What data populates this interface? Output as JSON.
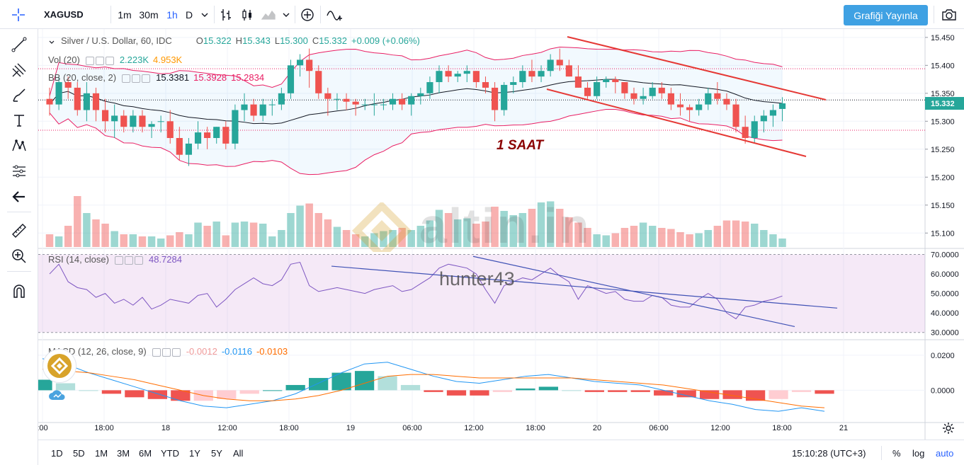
{
  "toolbar": {
    "symbol": "XAGUSD",
    "intervals": [
      "1m",
      "30m",
      "1h",
      "D"
    ],
    "active_interval": "1h",
    "publish_label": "Grafiği Yayınla"
  },
  "legend": {
    "title": "Silver / U.S. Dollar, 60, IDC",
    "o_label": "O",
    "o_value": "15.322",
    "h_label": "H",
    "h_value": "15.343",
    "l_label": "L",
    "l_value": "15.300",
    "c_label": "C",
    "c_value": "15.332",
    "change": "+0.009 (+0.06%)",
    "vol_name": "Vol (20)",
    "vol_v1": "2.223K",
    "vol_v2": "4.953K",
    "bb_name": "BB (20, close, 2)",
    "bb_v1": "15.3381",
    "bb_v2": "15.3928",
    "bb_v3": "15.2834",
    "rsi_name": "RSI (14, close)",
    "rsi_v": "48.7284",
    "macd_name": "MACD (12, 26, close, 9)",
    "macd_v1": "-0.0012",
    "macd_v2": "-0.0116",
    "macd_v3": "-0.0103"
  },
  "annotation": {
    "label": "1 SAAT",
    "color": "#8b0000"
  },
  "watermark": {
    "brand": "altin.in",
    "user": "hunter43"
  },
  "price_axis": [
    "15.450",
    "15.400",
    "15.350",
    "15.300",
    "15.250",
    "15.200",
    "15.150",
    "15.100"
  ],
  "current_price": "15.332",
  "rsi_axis": [
    "70.0000",
    "60.0000",
    "50.0000",
    "40.0000",
    "30.0000"
  ],
  "macd_axis": [
    "0.0200",
    "0.0000"
  ],
  "time_axis": [
    ":00",
    "18:00",
    "18",
    "12:00",
    "18:00",
    "19",
    "06:00",
    "12:00",
    "18:00",
    "20",
    "06:00",
    "12:00",
    "18:00",
    "21"
  ],
  "bottom": {
    "ranges": [
      "1D",
      "5D",
      "1M",
      "3M",
      "6M",
      "YTD",
      "1Y",
      "5Y",
      "All"
    ],
    "clock": "15:10:28 (UTC+3)",
    "pct": "%",
    "log": "log",
    "auto": "auto"
  },
  "colors": {
    "up": "#26a69a",
    "down": "#ef5350",
    "accent": "#2962ff",
    "bb": "#e91e63",
    "rsi": "#7e57c2"
  },
  "chart_data": {
    "type": "candlestick",
    "title": "Silver / U.S. Dollar, 60, IDC",
    "candles": [
      [
        15.34,
        15.36,
        15.31,
        15.33
      ],
      [
        15.33,
        15.38,
        15.32,
        15.37
      ],
      [
        15.37,
        15.38,
        15.34,
        15.36
      ],
      [
        15.36,
        15.37,
        15.31,
        15.32
      ],
      [
        15.32,
        15.37,
        15.3,
        15.35
      ],
      [
        15.35,
        15.36,
        15.3,
        15.32
      ],
      [
        15.32,
        15.34,
        15.28,
        15.3
      ],
      [
        15.3,
        15.33,
        15.27,
        15.31
      ],
      [
        15.31,
        15.32,
        15.28,
        15.29
      ],
      [
        15.29,
        15.32,
        15.28,
        15.31
      ],
      [
        15.31,
        15.32,
        15.28,
        15.29
      ],
      [
        15.29,
        15.3,
        15.27,
        15.295
      ],
      [
        15.3,
        15.31,
        15.28,
        15.3
      ],
      [
        15.3,
        15.32,
        15.26,
        15.27
      ],
      [
        15.27,
        15.29,
        15.23,
        15.24
      ],
      [
        15.24,
        15.27,
        15.22,
        15.26
      ],
      [
        15.26,
        15.3,
        15.25,
        15.28
      ],
      [
        15.28,
        15.29,
        15.25,
        15.27
      ],
      [
        15.27,
        15.29,
        15.26,
        15.29
      ],
      [
        15.29,
        15.3,
        15.25,
        15.26
      ],
      [
        15.26,
        15.33,
        15.25,
        15.32
      ],
      [
        15.32,
        15.35,
        15.3,
        15.33
      ],
      [
        15.33,
        15.34,
        15.3,
        15.31
      ],
      [
        15.31,
        15.34,
        15.3,
        15.33
      ],
      [
        15.33,
        15.34,
        15.31,
        15.33
      ],
      [
        15.33,
        15.36,
        15.32,
        15.35
      ],
      [
        15.35,
        15.41,
        15.34,
        15.4
      ],
      [
        15.4,
        15.42,
        15.38,
        15.41
      ],
      [
        15.41,
        15.43,
        15.36,
        15.39
      ],
      [
        15.39,
        15.4,
        15.34,
        15.35
      ],
      [
        15.35,
        15.36,
        15.31,
        15.34
      ],
      [
        15.34,
        15.35,
        15.32,
        15.34
      ],
      [
        15.34,
        15.35,
        15.32,
        15.335
      ],
      [
        15.335,
        15.34,
        15.31,
        15.33
      ],
      [
        15.33,
        15.34,
        15.32,
        15.33
      ],
      [
        15.33,
        15.35,
        15.31,
        15.33
      ],
      [
        15.33,
        15.34,
        15.32,
        15.33
      ],
      [
        15.33,
        15.35,
        15.32,
        15.34
      ],
      [
        15.34,
        15.35,
        15.32,
        15.33
      ],
      [
        15.33,
        15.35,
        15.31,
        15.345
      ],
      [
        15.345,
        15.36,
        15.33,
        15.35
      ],
      [
        15.35,
        15.38,
        15.34,
        15.37
      ],
      [
        15.37,
        15.4,
        15.35,
        15.39
      ],
      [
        15.39,
        15.4,
        15.37,
        15.38
      ],
      [
        15.38,
        15.39,
        15.37,
        15.385
      ],
      [
        15.385,
        15.4,
        15.37,
        15.39
      ],
      [
        15.39,
        15.39,
        15.36,
        15.37
      ],
      [
        15.37,
        15.38,
        15.35,
        15.36
      ],
      [
        15.36,
        15.37,
        15.3,
        15.32
      ],
      [
        15.32,
        15.37,
        15.31,
        15.365
      ],
      [
        15.365,
        15.38,
        15.35,
        15.37
      ],
      [
        15.37,
        15.4,
        15.36,
        15.39
      ],
      [
        15.39,
        15.41,
        15.37,
        15.38
      ],
      [
        15.38,
        15.4,
        15.37,
        15.39
      ],
      [
        15.39,
        15.42,
        15.38,
        15.41
      ],
      [
        15.41,
        15.43,
        15.39,
        15.4
      ],
      [
        15.4,
        15.41,
        15.38,
        15.38
      ],
      [
        15.38,
        15.4,
        15.36,
        15.36
      ],
      [
        15.36,
        15.37,
        15.34,
        15.345
      ],
      [
        15.345,
        15.38,
        15.34,
        15.37
      ],
      [
        15.37,
        15.38,
        15.36,
        15.375
      ],
      [
        15.375,
        15.38,
        15.35,
        15.37
      ],
      [
        15.37,
        15.37,
        15.34,
        15.35
      ],
      [
        15.35,
        15.36,
        15.33,
        15.34
      ],
      [
        15.34,
        15.36,
        15.33,
        15.345
      ],
      [
        15.345,
        15.37,
        15.34,
        15.36
      ],
      [
        15.36,
        15.37,
        15.34,
        15.35
      ],
      [
        15.35,
        15.36,
        15.32,
        15.33
      ],
      [
        15.33,
        15.35,
        15.31,
        15.325
      ],
      [
        15.325,
        15.33,
        15.3,
        15.32
      ],
      [
        15.32,
        15.34,
        15.31,
        15.33
      ],
      [
        15.33,
        15.36,
        15.32,
        15.35
      ],
      [
        15.35,
        15.37,
        15.33,
        15.34
      ],
      [
        15.34,
        15.35,
        15.32,
        15.33
      ],
      [
        15.33,
        15.34,
        15.28,
        15.29
      ],
      [
        15.29,
        15.31,
        15.26,
        15.27
      ],
      [
        15.27,
        15.31,
        15.26,
        15.3
      ],
      [
        15.3,
        15.32,
        15.28,
        15.31
      ],
      [
        15.31,
        15.33,
        15.29,
        15.32
      ],
      [
        15.322,
        15.343,
        15.3,
        15.332
      ]
    ],
    "volumes": [
      1.2,
      1.0,
      2.0,
      4.8,
      3.2,
      2.6,
      2.2,
      1.5,
      1.2,
      1.2,
      1.0,
      1.0,
      0.8,
      1.1,
      1.4,
      1.2,
      2.3,
      2.0,
      2.4,
      1.1,
      2.3,
      2.4,
      2.3,
      2.2,
      1.0,
      1.6,
      3.2,
      3.9,
      4.1,
      3.2,
      2.6,
      1.9,
      1.6,
      1.2,
      1.0,
      1.3,
      1.5,
      1.6,
      1.8,
      1.6,
      2.0,
      2.5,
      3.5,
      3.2,
      2.6,
      2.7,
      2.2,
      2.4,
      3.8,
      3.4,
      3.0,
      3.2,
      3.6,
      4.2,
      4.3,
      3.6,
      2.8,
      2.3,
      1.8,
      1.2,
      1.1,
      1.3,
      1.8,
      2.0,
      2.3,
      2.0,
      1.8,
      1.7,
      1.4,
      1.2,
      1.3,
      1.6,
      2.0,
      2.5,
      2.5,
      2.4,
      2.2,
      1.6,
      1.2,
      0.8
    ],
    "rsi": [
      60,
      65,
      56,
      53,
      52,
      48,
      50,
      45,
      47,
      44,
      48,
      42,
      44,
      47,
      46,
      45,
      49,
      50,
      43,
      47,
      52,
      55,
      58,
      55,
      54,
      57,
      65,
      66,
      54,
      51,
      52,
      53,
      52,
      51,
      50,
      52,
      53,
      54,
      51,
      52,
      55,
      58,
      63,
      65,
      64,
      63,
      60,
      52,
      45,
      54,
      56,
      58,
      57,
      60,
      63,
      59,
      56,
      47,
      54,
      52,
      50,
      51,
      47,
      46,
      46,
      49,
      48,
      44,
      43,
      43,
      47,
      50,
      47,
      40,
      37,
      43,
      44,
      46,
      47,
      48.7
    ],
    "macd": {
      "line": [
        0.018,
        0.015,
        0.01,
        0.006,
        0.002,
        -0.002,
        -0.006,
        -0.009,
        -0.01,
        -0.008,
        -0.006,
        -0.002,
        0.004,
        0.01,
        0.015,
        0.016,
        0.012,
        0.008,
        0.005,
        0.004,
        0.006,
        0.008,
        0.009,
        0.007,
        0.005,
        0.004,
        0.003,
        0.0,
        -0.003,
        -0.006,
        -0.008,
        -0.011,
        -0.012,
        -0.01,
        -0.012
      ],
      "signal": [
        0.012,
        0.011,
        0.01,
        0.008,
        0.006,
        0.003,
        0.0,
        -0.003,
        -0.005,
        -0.006,
        -0.006,
        -0.005,
        -0.003,
        0.0,
        0.004,
        0.008,
        0.009,
        0.009,
        0.008,
        0.007,
        0.007,
        0.007,
        0.007,
        0.007,
        0.006,
        0.005,
        0.004,
        0.003,
        0.001,
        -0.001,
        -0.003,
        -0.005,
        -0.007,
        -0.009,
        -0.01
      ]
    }
  }
}
